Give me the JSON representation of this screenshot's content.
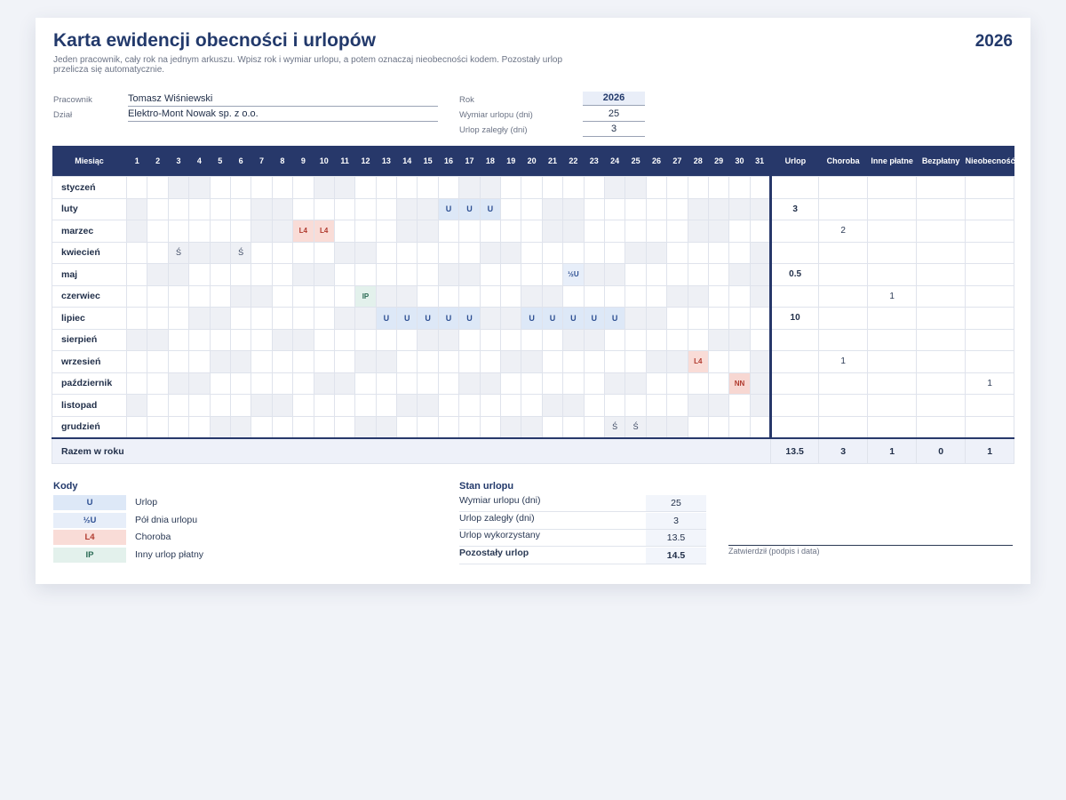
{
  "header": {
    "title": "Karta ewidencji obecności i urlopów",
    "year": "2026",
    "subtitle": "Jeden pracownik, cały rok na jednym arkuszu. Wpisz rok i wymiar urlopu, a potem oznaczaj nieobecności kodem. Pozostały urlop przelicza się automatycznie."
  },
  "employee": {
    "name_label": "Pracownik",
    "name": "Tomasz Wiśniewski",
    "dept_label": "Dział",
    "dept": "Elektro-Mont Nowak sp. z o.o."
  },
  "params": {
    "year_label": "Rok",
    "year": "2026",
    "entitlement_label": "Wymiar urlopu (dni)",
    "entitlement": "25",
    "carryover_label": "Urlop zaległy (dni)",
    "carryover": "3"
  },
  "table": {
    "month_header": "Miesiąc",
    "days": [
      "1",
      "2",
      "3",
      "4",
      "5",
      "6",
      "7",
      "8",
      "9",
      "10",
      "11",
      "12",
      "13",
      "14",
      "15",
      "16",
      "17",
      "18",
      "19",
      "20",
      "21",
      "22",
      "23",
      "24",
      "25",
      "26",
      "27",
      "28",
      "29",
      "30",
      "31"
    ],
    "summary_headers": [
      "Urlop",
      "Choroba",
      "Inne płatne",
      "Bezpłatny",
      "Nieobecność"
    ],
    "months": [
      {
        "name": "styczeń",
        "weekends": [
          3,
          4,
          10,
          11,
          17,
          18,
          24,
          25
        ],
        "codes": {},
        "summary": [
          "",
          "",
          "",
          "",
          ""
        ]
      },
      {
        "name": "luty",
        "weekends": [
          1,
          7,
          8,
          14,
          15,
          21,
          22,
          28
        ],
        "invalid": [
          29,
          30,
          31
        ],
        "codes": {
          "16": "U",
          "17": "U",
          "18": "U"
        },
        "summary": [
          "3",
          "",
          "",
          "",
          ""
        ]
      },
      {
        "name": "marzec",
        "weekends": [
          1,
          7,
          8,
          14,
          15,
          21,
          22,
          28,
          29
        ],
        "codes": {
          "9": "L4",
          "10": "L4"
        },
        "summary": [
          "",
          "2",
          "",
          "",
          ""
        ]
      },
      {
        "name": "kwiecień",
        "weekends": [
          4,
          5,
          11,
          12,
          18,
          19,
          25,
          26
        ],
        "invalid": [
          31
        ],
        "codes": {
          "3": "Ś",
          "6": "Ś"
        },
        "summary": [
          "",
          "",
          "",
          "",
          ""
        ]
      },
      {
        "name": "maj",
        "weekends": [
          2,
          3,
          9,
          10,
          16,
          17,
          23,
          24,
          30,
          31
        ],
        "codes": {
          "22": "½U"
        },
        "summary": [
          "0.5",
          "",
          "",
          "",
          ""
        ]
      },
      {
        "name": "czerwiec",
        "weekends": [
          6,
          7,
          13,
          14,
          20,
          21,
          27,
          28
        ],
        "invalid": [
          31
        ],
        "codes": {
          "12": "IP"
        },
        "summary": [
          "",
          "",
          "1",
          "",
          ""
        ]
      },
      {
        "name": "lipiec",
        "weekends": [
          4,
          5,
          11,
          12,
          18,
          19,
          25,
          26
        ],
        "codes": {
          "13": "U",
          "14": "U",
          "15": "U",
          "16": "U",
          "17": "U",
          "20": "U",
          "21": "U",
          "22": "U",
          "23": "U",
          "24": "U"
        },
        "summary": [
          "10",
          "",
          "",
          "",
          ""
        ]
      },
      {
        "name": "sierpień",
        "weekends": [
          1,
          2,
          8,
          9,
          15,
          16,
          22,
          23,
          29,
          30
        ],
        "codes": {},
        "summary": [
          "",
          "",
          "",
          "",
          ""
        ]
      },
      {
        "name": "wrzesień",
        "weekends": [
          5,
          6,
          12,
          13,
          19,
          20,
          26,
          27
        ],
        "invalid": [
          31
        ],
        "codes": {
          "28": "L4"
        },
        "summary": [
          "",
          "1",
          "",
          "",
          ""
        ]
      },
      {
        "name": "październik",
        "weekends": [
          3,
          4,
          10,
          11,
          17,
          18,
          24,
          25,
          31
        ],
        "codes": {
          "30": "NN"
        },
        "summary": [
          "",
          "",
          "",
          "",
          "1"
        ]
      },
      {
        "name": "listopad",
        "weekends": [
          1,
          7,
          8,
          14,
          15,
          21,
          22,
          28,
          29
        ],
        "invalid": [
          31
        ],
        "codes": {},
        "summary": [
          "",
          "",
          "",
          "",
          ""
        ]
      },
      {
        "name": "grudzień",
        "weekends": [
          5,
          6,
          12,
          13,
          19,
          20,
          26,
          27
        ],
        "codes": {
          "24": "Ś",
          "25": "Ś"
        },
        "summary": [
          "",
          "",
          "",
          "",
          ""
        ]
      }
    ],
    "total_label": "Razem w roku",
    "totals": [
      "13.5",
      "3",
      "1",
      "0",
      "1"
    ]
  },
  "legend": {
    "title": "Kody",
    "items": [
      {
        "code": "U",
        "label": "Urlop",
        "bg": "#dde8f7",
        "fg": "#2d4f92"
      },
      {
        "code": "½U",
        "label": "Pół dnia urlopu",
        "bg": "#e7eef9",
        "fg": "#2d4f92"
      },
      {
        "code": "L4",
        "label": "Choroba",
        "bg": "#f9dcd7",
        "fg": "#b03a2e"
      },
      {
        "code": "IP",
        "label": "Inny urlop płatny",
        "bg": "#e3f1ec",
        "fg": "#2b6b55"
      }
    ]
  },
  "balance": {
    "title": "Stan urlopu",
    "rows": [
      {
        "label": "Wymiar urlopu (dni)",
        "value": "25"
      },
      {
        "label": "Urlop zaległy (dni)",
        "value": "3"
      },
      {
        "label": "Urlop wykorzystany",
        "value": "13.5"
      },
      {
        "label": "Pozostały urlop",
        "value": "14.5"
      }
    ]
  },
  "signature": {
    "label": "Zatwierdził (podpis i data)"
  }
}
